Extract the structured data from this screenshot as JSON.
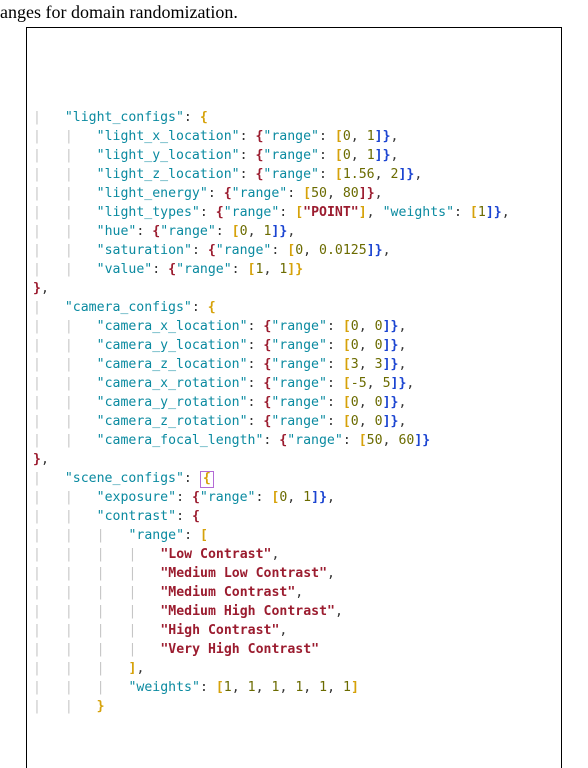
{
  "caption_text": "anges for domain randomization.",
  "code": {
    "sections": [
      {
        "name": "light_configs",
        "color": "#0a8aa0",
        "open_brace_color": "#d6a20a",
        "close_brace_color": "#9b1c2f",
        "entries": [
          {
            "key": "light_x_location",
            "kind": "range_nums",
            "vals": [
              "0",
              "1"
            ],
            "br_open": "#9b1c2f",
            "bk_open": "#d6a20a",
            "bk_close": "#1b44d1",
            "br_close": "#1b44d1"
          },
          {
            "key": "light_y_location",
            "kind": "range_nums",
            "vals": [
              "0",
              "1"
            ],
            "br_open": "#9b1c2f",
            "bk_open": "#d6a20a",
            "bk_close": "#1b44d1",
            "br_close": "#1b44d1"
          },
          {
            "key": "light_z_location",
            "kind": "range_nums",
            "vals": [
              "1.56",
              "2"
            ],
            "br_open": "#9b1c2f",
            "bk_open": "#d6a20a",
            "bk_close": "#1b44d1",
            "br_close": "#1b44d1"
          },
          {
            "key": "light_energy",
            "kind": "range_nums",
            "vals": [
              "50",
              "80"
            ],
            "br_open": "#9b1c2f",
            "bk_open": "#d6a20a",
            "bk_close": "#9b1c2f",
            "br_close": "#9b1c2f"
          },
          {
            "key": "light_types",
            "kind": "range_strs_weights",
            "range_vals": [
              "\"POINT\""
            ],
            "weights": [
              "1"
            ],
            "br_open": "#9b1c2f",
            "bk_open": "#d6a20a",
            "bk_close": "#d6a20a",
            "wbk_open": "#d6a20a",
            "wbk_close": "#1b44d1",
            "br_close": "#1b44d1"
          },
          {
            "key": "hue",
            "kind": "range_nums",
            "vals": [
              "0",
              "1"
            ],
            "br_open": "#9b1c2f",
            "bk_open": "#d6a20a",
            "bk_close": "#1b44d1",
            "br_close": "#1b44d1"
          },
          {
            "key": "saturation",
            "kind": "range_nums",
            "vals": [
              "0",
              "0.0125"
            ],
            "br_open": "#9b1c2f",
            "bk_open": "#d6a20a",
            "bk_close": "#1b44d1",
            "br_close": "#1b44d1"
          },
          {
            "key": "value",
            "kind": "range_nums",
            "vals": [
              "1",
              "1"
            ],
            "br_open": "#9b1c2f",
            "bk_open": "#d6a20a",
            "bk_close": "#d6a20a",
            "br_close": "#d6a20a",
            "trailing_comma": false
          }
        ]
      },
      {
        "name": "camera_configs",
        "open_brace_color": "#d6a20a",
        "close_brace_color": "#9b1c2f",
        "entries": [
          {
            "key": "camera_x_location",
            "kind": "range_nums",
            "vals": [
              "0",
              "0"
            ],
            "br_open": "#9b1c2f",
            "bk_open": "#d6a20a",
            "bk_close": "#1b44d1",
            "br_close": "#1b44d1"
          },
          {
            "key": "camera_y_location",
            "kind": "range_nums",
            "vals": [
              "0",
              "0"
            ],
            "br_open": "#9b1c2f",
            "bk_open": "#d6a20a",
            "bk_close": "#1b44d1",
            "br_close": "#1b44d1"
          },
          {
            "key": "camera_z_location",
            "kind": "range_nums",
            "vals": [
              "3",
              "3"
            ],
            "br_open": "#9b1c2f",
            "bk_open": "#d6a20a",
            "bk_close": "#1b44d1",
            "br_close": "#1b44d1"
          },
          {
            "key": "camera_x_rotation",
            "kind": "range_nums",
            "vals": [
              "-5",
              "5"
            ],
            "br_open": "#9b1c2f",
            "bk_open": "#d6a20a",
            "bk_close": "#1b44d1",
            "br_close": "#1b44d1"
          },
          {
            "key": "camera_y_rotation",
            "kind": "range_nums",
            "vals": [
              "0",
              "0"
            ],
            "br_open": "#9b1c2f",
            "bk_open": "#d6a20a",
            "bk_close": "#1b44d1",
            "br_close": "#1b44d1"
          },
          {
            "key": "camera_z_rotation",
            "kind": "range_nums",
            "vals": [
              "0",
              "0"
            ],
            "br_open": "#9b1c2f",
            "bk_open": "#d6a20a",
            "bk_close": "#1b44d1",
            "br_close": "#1b44d1"
          },
          {
            "key": "camera_focal_length",
            "kind": "range_nums",
            "vals": [
              "50",
              "60"
            ],
            "br_open": "#9b1c2f",
            "bk_open": "#d6a20a",
            "bk_close": "#1b44d1",
            "br_close": "#1b44d1",
            "trailing_comma": false
          }
        ]
      },
      {
        "name": "scene_configs",
        "open_brace_cursor": true,
        "open_brace_color": "#d6a20a",
        "entries_custom": true
      }
    ],
    "scene": {
      "exposure": {
        "vals": [
          "0",
          "1"
        ],
        "br_open": "#9b1c2f",
        "bk_open": "#d6a20a",
        "bk_close": "#1b44d1",
        "br_close": "#1b44d1"
      },
      "contrast_range_bracket_open": "#d6a20a",
      "contrast_range_bracket_close": "#d6a20a",
      "contrast_values": [
        "Low Contrast",
        "Medium Low Contrast",
        "Medium Contrast",
        "Medium High Contrast",
        "High Contrast",
        "Very High Contrast"
      ],
      "weights_vals": [
        "1",
        "1",
        "1",
        "1",
        "1",
        "1"
      ],
      "weights_bk_open": "#d6a20a",
      "weights_bk_close": "#d6a20a"
    },
    "indent": "    ",
    "palette": {
      "key": "#0a8aa0",
      "punct": "#333333",
      "brace_red": "#9b1c2f",
      "bracket_yellow": "#d6a20a",
      "num": "#6b6b00",
      "string": "#9b1c2f",
      "blue": "#1b44d1",
      "guide": "#c6c6c6",
      "cursor": "#b36bd6"
    }
  }
}
